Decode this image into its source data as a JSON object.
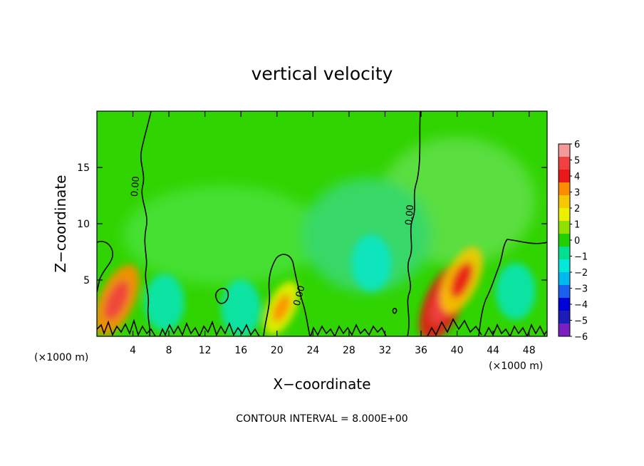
{
  "chart_data": {
    "type": "heatmap",
    "title": "vertical velocity",
    "xlabel": "X−coordinate",
    "ylabel": "Z−coordinate",
    "x_unit_label": "(×1000 m)",
    "z_unit_label": "(×1000 m)",
    "xlim": [
      0,
      50
    ],
    "ylim": [
      0,
      20
    ],
    "x_ticks": [
      4,
      8,
      12,
      16,
      20,
      24,
      28,
      32,
      36,
      40,
      44,
      48
    ],
    "y_ticks": [
      5,
      10,
      15
    ],
    "colorbar": {
      "ticks": [
        "6",
        "5",
        "4",
        "3",
        "2",
        "1",
        "0",
        "−1",
        "−2",
        "−3",
        "−4",
        "−5",
        "−6"
      ],
      "colors": [
        "#f59a9a",
        "#f04040",
        "#e81818",
        "#ff8c00",
        "#f5c800",
        "#eaf000",
        "#8ee000",
        "#20d000",
        "#00e090",
        "#00e8d8",
        "#00b8f0",
        "#1a60f0",
        "#0000d8",
        "#1c1cb8",
        "#7a1fc0"
      ]
    },
    "contour_label": "0.00",
    "contour_interval": "CONTOUR INTERVAL = 8.000E+00",
    "updrafts": [
      {
        "x": 2.2,
        "z": 3.2,
        "w": 3.5
      },
      {
        "x": 20.5,
        "z": 2.5,
        "w": 1.8
      },
      {
        "x": 38.5,
        "z": 3.0,
        "w": 4.0
      },
      {
        "x": 40.5,
        "z": 5.0,
        "w": 3.0
      }
    ],
    "downdrafts": [
      {
        "x": 7.5,
        "z": 3.0,
        "w": -1.5
      },
      {
        "x": 16.0,
        "z": 2.5,
        "w": -1.5
      },
      {
        "x": 30.5,
        "z": 6.5,
        "w": -2.0
      },
      {
        "x": 46.5,
        "z": 4.0,
        "w": -1.5
      }
    ]
  }
}
